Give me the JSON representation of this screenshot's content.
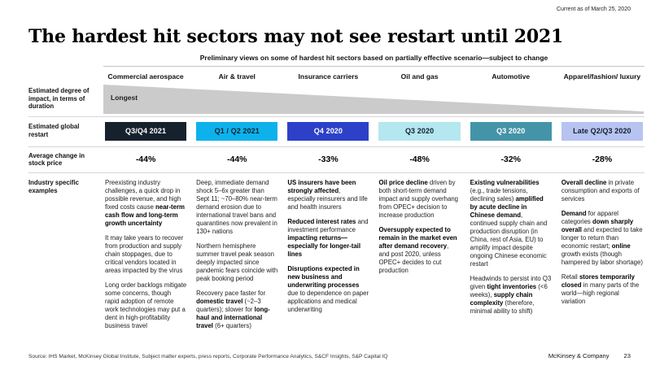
{
  "meta": {
    "current_as_of": "Current as of March 25, 2020",
    "source": "Source: IHS Market, McKinsey Global Institute, Subject matter experts, press reports, Corporate Performance Analytics, S&CF Insights, S&P Capital IQ",
    "brand": "McKinsey & Company",
    "page_number": "23"
  },
  "title": "The hardest hit sectors may not see restart until 2021",
  "subtitle": "Preliminary views on some of hardest hit sectors based on partially effective scenario—subject to change",
  "row_labels": {
    "impact": "Estimated degree of impact, in terms of duration",
    "restart": "Estimated global restart",
    "stock": "Average change in stock price",
    "examples": "Industry specific examples"
  },
  "wedge": {
    "label": "Longest",
    "color": "#cbcbcb"
  },
  "columns": [
    {
      "header": "Commercial aerospace",
      "restart": {
        "label": "Q3/Q4 2021",
        "bg": "#15222e",
        "fg": "#ffffff"
      },
      "stock_change": "-44%",
      "paragraphs": [
        [
          {
            "t": "Preexisting industry challenges, a quick drop in possible revenue, and high fixed costs cause "
          },
          {
            "t": "near-term cash flow and long-term growth uncertainty",
            "b": true
          }
        ],
        [
          {
            "t": "It may take years to recover from production and supply chain stoppages, due to critical vendors located in areas impacted by the virus"
          }
        ],
        [
          {
            "t": "Long order backlogs mitigate some concerns, though rapid adoption of remote work technologies may put a dent in high-profitability business travel"
          }
        ]
      ]
    },
    {
      "header": "Air & travel",
      "restart": {
        "label": "Q1 / Q2 2021",
        "bg": "#0db2ec",
        "fg": "#11222e"
      },
      "stock_change": "-44%",
      "paragraphs": [
        [
          {
            "t": "Deep, immediate demand shock 5–6x greater than Sept 11; ~70–80% near-term demand erosion due to international travel bans and quarantines now prevalent in 130+ nations"
          }
        ],
        [
          {
            "t": "Northern hemisphere summer travel peak season deeply impacted since pandemic fears coincide with peak booking period"
          }
        ],
        [
          {
            "t": "Recovery pace faster for "
          },
          {
            "t": "domestic travel",
            "b": true
          },
          {
            "t": " (~2–3 quarters); slower for "
          },
          {
            "t": "long-haul and international travel",
            "b": true
          },
          {
            "t": " (6+ quarters)"
          }
        ]
      ]
    },
    {
      "header": "Insurance carriers",
      "restart": {
        "label": "Q4 2020",
        "bg": "#2c41c8",
        "fg": "#ffffff"
      },
      "stock_change": "-33%",
      "paragraphs": [
        [
          {
            "t": "US insurers have been strongly affected",
            "b": true
          },
          {
            "t": ", especially reinsurers and life and health insurers"
          }
        ],
        [
          {
            "t": "Reduced interest rates",
            "b": true
          },
          {
            "t": " and investment performance "
          },
          {
            "t": "impacting returns—especially for longer-tail lines",
            "b": true
          }
        ],
        [
          {
            "t": "Disruptions expected in new business and underwriting processes",
            "b": true
          },
          {
            "t": " due to dependence on paper applications and medical underwriting"
          }
        ]
      ]
    },
    {
      "header": "Oil and gas",
      "restart": {
        "label": "Q3 2020",
        "bg": "#b4e7ef",
        "fg": "#11222e"
      },
      "stock_change": "-48%",
      "paragraphs": [
        [
          {
            "t": "Oil price decline",
            "b": true
          },
          {
            "t": " driven by both short-term demand impact and supply overhang from OPEC+ decision to increase production"
          }
        ],
        [
          {
            "t": "Oversupply expected to remain in the market even after demand recovery",
            "b": true
          },
          {
            "t": ", and post 2020, unless OPEC+ decides to cut production"
          }
        ]
      ]
    },
    {
      "header": "Automotive",
      "restart": {
        "label": "Q3 2020",
        "bg": "#4494a9",
        "fg": "#ffffff"
      },
      "stock_change": "-32%",
      "paragraphs": [
        [
          {
            "t": "Existing vulnerabilities",
            "b": true
          },
          {
            "t": " (e.g., trade tensions, declining sales) "
          },
          {
            "t": "amplified by acute decline in Chinese demand",
            "b": true
          },
          {
            "t": ", continued supply chain and production disruption (in China, rest of Asia, EU) to amplify impact despite ongoing Chinese economic restart"
          }
        ],
        [
          {
            "t": "Headwinds to persist into Q3 given "
          },
          {
            "t": "tight inventories",
            "b": true
          },
          {
            "t": " (<6 weeks), "
          },
          {
            "t": "supply chain complexity",
            "b": true
          },
          {
            "t": " (therefore, minimal ability to shift)"
          }
        ]
      ]
    },
    {
      "header": "Apparel/fashion/ luxury",
      "restart": {
        "label": "Late Q2/Q3 2020",
        "bg": "#b7c3f1",
        "fg": "#11222e"
      },
      "stock_change": "-28%",
      "paragraphs": [
        [
          {
            "t": "Overall decline",
            "b": true
          },
          {
            "t": " in private consumption and exports of services"
          }
        ],
        [
          {
            "t": "Demand",
            "b": true
          },
          {
            "t": " for apparel categories "
          },
          {
            "t": "down sharply overall",
            "b": true
          },
          {
            "t": " and expected to take longer to return than economic restart; "
          },
          {
            "t": "online",
            "b": true
          },
          {
            "t": " growth exists (though hampered by labor shortage)"
          }
        ],
        [
          {
            "t": "Retail "
          },
          {
            "t": "stores temporarily closed",
            "b": true
          },
          {
            "t": " in many parts of the world—high regional variation"
          }
        ]
      ]
    }
  ]
}
